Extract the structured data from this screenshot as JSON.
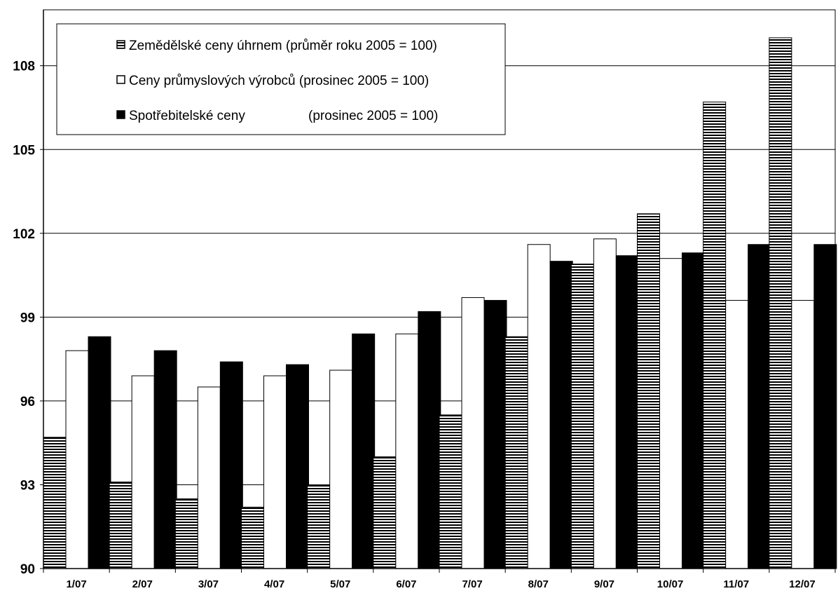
{
  "chart_data": {
    "type": "bar",
    "title": "",
    "xlabel": "",
    "ylabel": "",
    "ylim": [
      90,
      110
    ],
    "yticks": [
      90,
      93,
      96,
      99,
      102,
      105,
      108
    ],
    "grid": "horizontal",
    "legend_position": "top-left",
    "categories": [
      "1/07",
      "2/07",
      "3/07",
      "4/07",
      "5/07",
      "6/07",
      "7/07",
      "8/07",
      "9/07",
      "10/07",
      "11/07",
      "12/07"
    ],
    "series": [
      {
        "name": "Zemědělské ceny úhrnem (průměr roku 2005 = 100)",
        "pattern": "horizontal-stripes",
        "color": "#000000",
        "values": [
          94.7,
          93.1,
          92.5,
          92.2,
          93.0,
          94.0,
          95.5,
          98.3,
          100.9,
          102.7,
          106.7,
          109.0
        ]
      },
      {
        "name": "Ceny průmyslových výrobců (prosinec 2005 = 100)",
        "pattern": "white",
        "color": "#ffffff",
        "values": [
          97.8,
          96.9,
          96.5,
          96.9,
          97.1,
          98.4,
          99.7,
          101.6,
          101.8,
          101.1,
          99.6,
          99.6
        ]
      },
      {
        "name": "Spotřebitelské ceny",
        "pattern": "black",
        "color": "#000000",
        "values": [
          98.3,
          97.8,
          97.4,
          97.3,
          98.4,
          99.2,
          99.6,
          101.0,
          101.2,
          101.3,
          101.6,
          101.6
        ]
      }
    ],
    "legend": [
      {
        "label": "Zemědělské ceny úhrnem (průměr roku 2005 = 100)",
        "suffix": ""
      },
      {
        "label": "Ceny průmyslových výrobců (prosinec 2005 = 100)",
        "suffix": ""
      },
      {
        "label": "Spotřebitelské ceny",
        "suffix": "(prosinec 2005 = 100)"
      }
    ]
  }
}
